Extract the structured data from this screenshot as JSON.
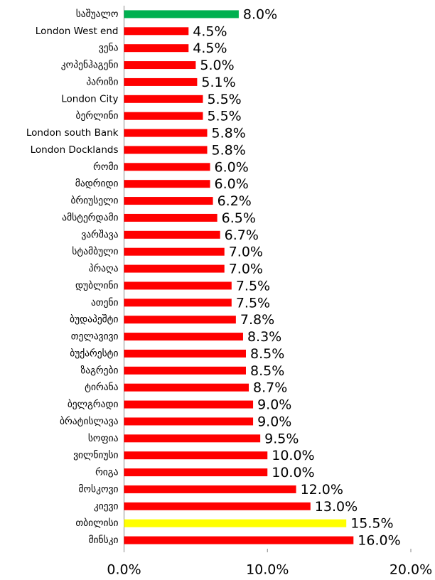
{
  "chart_data": {
    "type": "hbar",
    "categories": [
      "საშუალო",
      "London West end",
      "ვენა",
      "კოპენჰაგენი",
      "პარიზი",
      "London City",
      "ბერლინი",
      "London south Bank",
      "London Docklands",
      "რომი",
      "მადრიდი",
      "ბრიუსელი",
      "ამსტერდამი",
      "ვარშავა",
      "სტამბული",
      "პრაღა",
      "დუბლინი",
      "ათენი",
      "ბუდაპეშტი",
      "თელავივი",
      "ბუქარესტი",
      "ზაგრები",
      "ტირანა",
      "ბელგრადი",
      "ბრატისლავა",
      "სოფია",
      "ვილნიუსი",
      "რიგა",
      "მოსკოვი",
      "კიევი",
      "თბილისი",
      "მინსკი"
    ],
    "values": [
      8,
      4.5,
      4.5,
      5,
      5.1,
      5.5,
      5.5,
      5.8,
      5.8,
      6,
      6,
      6.2,
      6.5,
      6.7,
      7,
      7,
      7.5,
      7.5,
      7.8,
      8.3,
      8.5,
      8.5,
      8.7,
      9,
      9,
      9.5,
      10,
      10,
      12,
      13,
      15.5,
      16
    ],
    "value_labels": [
      "8.0%",
      "4.5%",
      "4.5%",
      "5.0%",
      "5.1%",
      "5.5%",
      "5.5%",
      "5.8%",
      "5.8%",
      "6.0%",
      "6.0%",
      "6.2%",
      "6.5%",
      "6.7%",
      "7.0%",
      "7.0%",
      "7.5%",
      "7.5%",
      "7.8%",
      "8.3%",
      "8.5%",
      "8.5%",
      "8.7%",
      "9.0%",
      "9.0%",
      "9.5%",
      "10.0%",
      "10.0%",
      "12.0%",
      "13.0%",
      "15.5%",
      "16.0%"
    ],
    "colors": [
      "#00b050",
      "#ff0000",
      "#ff0000",
      "#ff0000",
      "#ff0000",
      "#ff0000",
      "#ff0000",
      "#ff0000",
      "#ff0000",
      "#ff0000",
      "#ff0000",
      "#ff0000",
      "#ff0000",
      "#ff0000",
      "#ff0000",
      "#ff0000",
      "#ff0000",
      "#ff0000",
      "#ff0000",
      "#ff0000",
      "#ff0000",
      "#ff0000",
      "#ff0000",
      "#ff0000",
      "#ff0000",
      "#ff0000",
      "#ff0000",
      "#ff0000",
      "#ff0000",
      "#ff0000",
      "#ffff00",
      "#ff0000"
    ],
    "xlim": [
      0,
      20
    ],
    "xticks": [
      {
        "value": 0,
        "label": "0.0%"
      },
      {
        "value": 10,
        "label": "10.0%"
      },
      {
        "value": 20,
        "label": "20.0%"
      }
    ]
  }
}
